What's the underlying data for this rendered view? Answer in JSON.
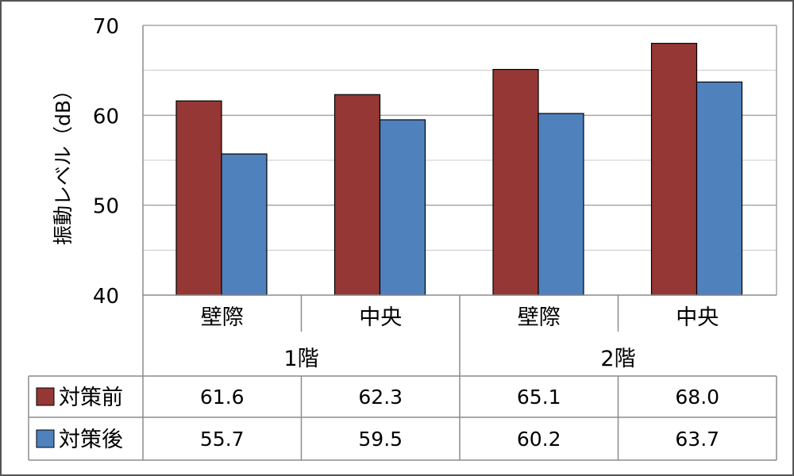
{
  "chart_data": {
    "type": "bar",
    "ylabel": "振動レベル（dB）",
    "ylim": [
      40,
      70
    ],
    "yticks": [
      40,
      50,
      60,
      70
    ],
    "grid": true,
    "groups": [
      {
        "label": "1階",
        "categories": [
          "壁際",
          "中央"
        ]
      },
      {
        "label": "2階",
        "categories": [
          "壁際",
          "中央"
        ]
      }
    ],
    "categories": [
      "壁際",
      "中央",
      "壁際",
      "中央"
    ],
    "series": [
      {
        "name": "対策前",
        "color": "#953735",
        "values": [
          61.6,
          62.3,
          65.1,
          68.0
        ],
        "labels": [
          "61.6",
          "62.3",
          "65.1",
          "68.0"
        ]
      },
      {
        "name": "対策後",
        "color": "#4f81bd",
        "values": [
          55.7,
          59.5,
          60.2,
          63.7
        ],
        "labels": [
          "55.7",
          "59.5",
          "60.2",
          "63.7"
        ]
      }
    ],
    "legend": "data-table"
  }
}
